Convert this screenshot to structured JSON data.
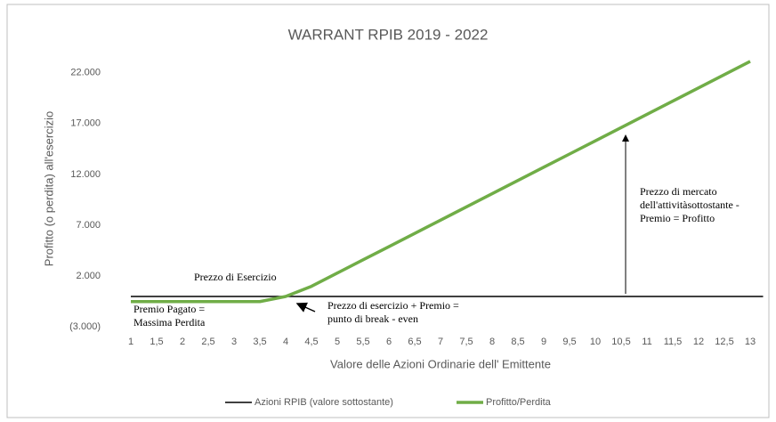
{
  "chart_data": {
    "type": "line",
    "title": "WARRANT  RPIB 2019 - 2022",
    "x_label": "Valore delle Azioni Ordinarie dell' Emittente",
    "y_label": "Profitto (o perdita) all'esercizio",
    "categories": [
      "1",
      "1,5",
      "2",
      "2,5",
      "3",
      "3,5",
      "4",
      "4,5",
      "5",
      "5,5",
      "6",
      "6,5",
      "7",
      "7,5",
      "8",
      "8,5",
      "9",
      "9,5",
      "10",
      "10,5",
      "11",
      "11,5",
      "12",
      "12,5",
      "13"
    ],
    "series": [
      {
        "name": "Azioni RPIB (valore sottostante)",
        "color": "#000000",
        "width": 1.5,
        "values": [
          0,
          0,
          0,
          0,
          0,
          0,
          0,
          0,
          0,
          0,
          0,
          0,
          0,
          0,
          0,
          0,
          0,
          0,
          0,
          0,
          0,
          0,
          0,
          0,
          0
        ]
      },
      {
        "name": "Profitto/Perdita",
        "color": "#70ad47",
        "width": 3.5,
        "values": [
          -500,
          -500,
          -500,
          -500,
          -500,
          -500,
          0,
          1000,
          2300,
          3600,
          4900,
          6200,
          7500,
          8800,
          10100,
          11400,
          12700,
          14000,
          15300,
          16600,
          17900,
          19200,
          20500,
          21800,
          23100
        ]
      }
    ],
    "ylim": [
      -3000,
      24000
    ],
    "yticks": [
      {
        "value": -3000,
        "label": "(3.000)"
      },
      {
        "value": 2000,
        "label": "2.000"
      },
      {
        "value": 7000,
        "label": "7.000"
      },
      {
        "value": 12000,
        "label": "12.000"
      },
      {
        "value": 17000,
        "label": "17.000"
      },
      {
        "value": 22000,
        "label": "22.000"
      }
    ],
    "legend": "bottom",
    "annotations": [
      {
        "lines": [
          "Prezzo di Esercizio"
        ]
      },
      {
        "lines": [
          "Premio Pagato =",
          "Massima Perdita"
        ]
      },
      {
        "lines": [
          "Prezzo di esercizio + Premio =",
          "punto di break - even"
        ]
      },
      {
        "lines": [
          "Prezzo di mercato",
          "dell'attivitàsottostante -",
          "Premio = Profitto"
        ]
      }
    ]
  }
}
